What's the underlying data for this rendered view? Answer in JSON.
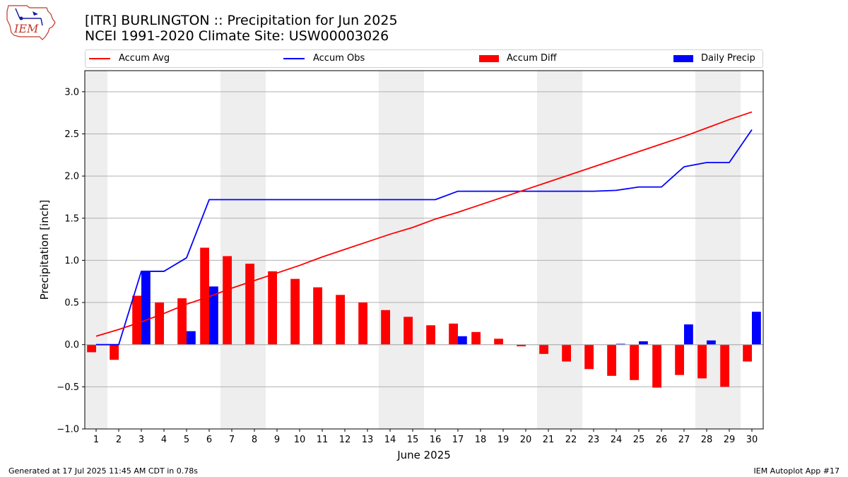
{
  "title_line1": "[ITR] BURLINGTON :: Precipitation for Jun 2025",
  "title_line2": "NCEI 1991-2020 Climate Site: USW00003026",
  "logo_text": "IEM",
  "footer_left": "Generated at 17 Jul 2025 11:45 AM CDT in 0.78s",
  "footer_right": "IEM Autoplot App #17",
  "colors": {
    "accum_avg": "#ff0000",
    "accum_obs": "#0000ff",
    "accum_diff": "#ff0000",
    "daily_precip": "#0000ff",
    "weekend_shade": "#eeeeee",
    "grid": "#b0b0b0"
  },
  "chart_data": {
    "type": "bar",
    "xlabel": "June 2025",
    "ylabel": "Precipitation [inch]",
    "ylim": [
      -1.0,
      3.25
    ],
    "yticks": [
      "−1.0",
      "−0.5",
      "0.0",
      "0.5",
      "1.0",
      "1.5",
      "2.0",
      "2.5",
      "3.0"
    ],
    "ytick_values": [
      -1.0,
      -0.5,
      0.0,
      0.5,
      1.0,
      1.5,
      2.0,
      2.5,
      3.0
    ],
    "grid": "horizontal",
    "legend_position": "top",
    "x": [
      "1",
      "2",
      "3",
      "4",
      "5",
      "6",
      "7",
      "8",
      "9",
      "10",
      "11",
      "12",
      "13",
      "14",
      "15",
      "16",
      "17",
      "18",
      "19",
      "20",
      "21",
      "22",
      "23",
      "24",
      "25",
      "26",
      "27",
      "28",
      "29",
      "30"
    ],
    "shaded_days": [
      1,
      7,
      8,
      14,
      15,
      21,
      22,
      28,
      29
    ],
    "series": [
      {
        "name": "Accum Avg",
        "kind": "line",
        "values": [
          0.1,
          0.18,
          0.27,
          0.37,
          0.48,
          0.57,
          0.67,
          0.76,
          0.85,
          0.94,
          1.04,
          1.13,
          1.22,
          1.31,
          1.39,
          1.49,
          1.57,
          1.66,
          1.75,
          1.84,
          1.93,
          2.02,
          2.11,
          2.2,
          2.29,
          2.38,
          2.47,
          2.57,
          2.67,
          2.76
        ]
      },
      {
        "name": "Accum Obs",
        "kind": "line",
        "values": [
          0.0,
          0.0,
          0.87,
          0.87,
          1.03,
          1.72,
          1.72,
          1.72,
          1.72,
          1.72,
          1.72,
          1.72,
          1.72,
          1.72,
          1.72,
          1.72,
          1.82,
          1.82,
          1.82,
          1.82,
          1.82,
          1.82,
          1.82,
          1.83,
          1.87,
          1.87,
          2.11,
          2.16,
          2.16,
          2.55
        ]
      },
      {
        "name": "Accum Diff",
        "kind": "bar",
        "values": [
          -0.09,
          -0.18,
          0.58,
          0.5,
          0.55,
          1.15,
          1.05,
          0.96,
          0.87,
          0.78,
          0.68,
          0.59,
          0.5,
          0.41,
          0.33,
          0.23,
          0.25,
          0.15,
          0.07,
          -0.02,
          -0.11,
          -0.2,
          -0.29,
          -0.37,
          -0.42,
          -0.51,
          -0.36,
          -0.4,
          -0.5,
          -0.2
        ]
      },
      {
        "name": "Daily Precip",
        "kind": "bar",
        "values": [
          0.0,
          0.0,
          0.87,
          0.0,
          0.16,
          0.69,
          0.0,
          0.0,
          0.0,
          0.0,
          0.0,
          0.0,
          0.0,
          0.0,
          0.0,
          0.0,
          0.1,
          0.0,
          0.0,
          0.0,
          0.0,
          0.0,
          0.0,
          0.01,
          0.04,
          0.0,
          0.24,
          0.05,
          0.0,
          0.39
        ]
      }
    ]
  }
}
